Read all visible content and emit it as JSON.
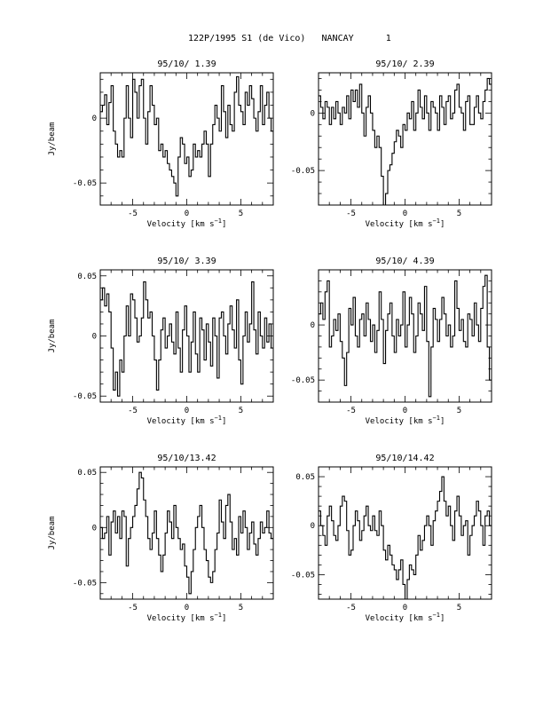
{
  "page_title": "122P/1995 S1 (de Vico)   NANCAY      1",
  "chart_data": [
    {
      "type": "line",
      "title": "95/10/ 1.39",
      "xlabel": "Velocity [km s⁻¹]",
      "ylabel": "Jy/beam",
      "xlim": [
        -8,
        8
      ],
      "ylim": [
        -0.067,
        0.035
      ],
      "xticks": [
        -5,
        0,
        5
      ],
      "yticks": [
        -0.05,
        0
      ],
      "x_start": -7.9,
      "x_step": 0.2,
      "values": [
        0.005,
        0.01,
        0.018,
        -0.005,
        0.012,
        0.025,
        -0.01,
        -0.02,
        -0.03,
        -0.025,
        -0.03,
        0.0,
        0.025,
        0.0,
        -0.015,
        0.03,
        0.02,
        0.0,
        0.025,
        0.03,
        0.0,
        -0.02,
        0.005,
        0.025,
        0.01,
        -0.005,
        0.0,
        -0.025,
        -0.02,
        -0.03,
        -0.025,
        -0.035,
        -0.04,
        -0.045,
        -0.05,
        -0.06,
        -0.03,
        -0.015,
        -0.02,
        -0.035,
        -0.03,
        -0.045,
        -0.04,
        -0.02,
        -0.03,
        -0.025,
        -0.03,
        -0.02,
        -0.01,
        -0.02,
        -0.045,
        -0.02,
        -0.005,
        0.01,
        0.0,
        -0.01,
        0.025,
        0.005,
        -0.015,
        0.01,
        -0.005,
        -0.01,
        0.02,
        0.032,
        0.01,
        0.005,
        -0.005,
        0.02,
        0.01,
        0.025,
        0.015,
        0.0,
        -0.01,
        0.005,
        0.025,
        -0.005,
        0.01,
        0.02,
        0.0,
        -0.01
      ]
    },
    {
      "type": "line",
      "title": "95/10/ 2.39",
      "xlabel": "Velocity [km s⁻¹]",
      "ylabel": "",
      "xlim": [
        -8,
        8
      ],
      "ylim": [
        -0.08,
        0.035
      ],
      "xticks": [
        -5,
        0,
        5
      ],
      "yticks": [
        -0.05,
        0
      ],
      "x_start": -7.9,
      "x_step": 0.2,
      "values": [
        0.015,
        0.005,
        -0.005,
        0.01,
        0.005,
        -0.01,
        0.005,
        -0.005,
        0.01,
        0.0,
        -0.01,
        0.005,
        0.0,
        0.015,
        -0.005,
        0.02,
        0.01,
        0.02,
        0.005,
        0.025,
        0.0,
        -0.02,
        0.005,
        0.015,
        0.0,
        -0.015,
        -0.03,
        -0.02,
        -0.03,
        -0.055,
        -0.08,
        -0.07,
        -0.05,
        -0.045,
        -0.035,
        -0.025,
        -0.015,
        -0.02,
        -0.03,
        -0.01,
        -0.015,
        0.0,
        -0.005,
        0.01,
        -0.015,
        0.0,
        0.02,
        0.005,
        -0.005,
        0.015,
        0.0,
        -0.015,
        0.01,
        0.005,
        0.0,
        -0.015,
        0.015,
        0.005,
        -0.01,
        0.01,
        0.015,
        -0.005,
        0.0,
        0.02,
        0.025,
        0.005,
        0.0,
        -0.015,
        0.01,
        0.015,
        -0.01,
        -0.01,
        0.005,
        0.015,
        0.0,
        -0.005,
        0.01,
        0.02,
        0.03,
        0.025
      ]
    },
    {
      "type": "line",
      "title": "95/10/ 3.39",
      "xlabel": "Velocity [km s⁻¹]",
      "ylabel": "Jy/beam",
      "xlim": [
        -8,
        8
      ],
      "ylim": [
        -0.055,
        0.055
      ],
      "xticks": [
        -5,
        0,
        5
      ],
      "yticks": [
        -0.05,
        0,
        0.05
      ],
      "x_start": -7.9,
      "x_step": 0.2,
      "values": [
        0.03,
        0.04,
        0.025,
        0.035,
        0.02,
        -0.01,
        -0.045,
        -0.03,
        -0.05,
        -0.02,
        -0.03,
        0.0,
        0.025,
        0.0,
        0.035,
        0.03,
        0.015,
        -0.005,
        0.0,
        0.015,
        0.045,
        0.03,
        0.015,
        0.02,
        0.0,
        -0.02,
        -0.045,
        -0.02,
        0.005,
        0.015,
        -0.01,
        0.0,
        0.01,
        -0.005,
        -0.015,
        0.02,
        -0.01,
        -0.03,
        0.005,
        0.025,
        0.0,
        -0.03,
        -0.005,
        0.02,
        -0.015,
        -0.03,
        0.015,
        0.005,
        -0.02,
        0.01,
        -0.005,
        -0.025,
        0.015,
        0.0,
        -0.035,
        0.015,
        0.02,
        0.0,
        -0.015,
        0.01,
        0.025,
        0.005,
        -0.01,
        0.03,
        -0.02,
        -0.04,
        0.0,
        0.02,
        -0.005,
        0.01,
        0.045,
        0.005,
        -0.015,
        0.02,
        0.0,
        -0.01,
        0.015,
        -0.005,
        0.01,
        -0.01
      ]
    },
    {
      "type": "line",
      "title": "95/10/ 4.39",
      "xlabel": "Velocity [km s⁻¹]",
      "ylabel": "",
      "xlim": [
        -8,
        8
      ],
      "ylim": [
        -0.07,
        0.05
      ],
      "xticks": [
        -5,
        0,
        5
      ],
      "yticks": [
        -0.05,
        0
      ],
      "x_start": -7.9,
      "x_step": 0.2,
      "values": [
        0.01,
        0.02,
        0.005,
        0.03,
        0.04,
        -0.02,
        -0.01,
        0.005,
        -0.005,
        0.01,
        -0.015,
        -0.03,
        -0.055,
        -0.025,
        0.015,
        0.0,
        0.025,
        -0.01,
        -0.02,
        0.005,
        0.01,
        -0.01,
        0.02,
        0.005,
        -0.015,
        0.0,
        -0.025,
        -0.005,
        0.03,
        0.005,
        -0.035,
        -0.005,
        0.01,
        0.02,
        -0.01,
        -0.025,
        0.005,
        -0.01,
        0.0,
        0.03,
        -0.02,
        0.0,
        0.025,
        0.01,
        -0.025,
        -0.01,
        0.02,
        0.01,
        -0.005,
        0.035,
        -0.015,
        -0.065,
        -0.02,
        0.015,
        0.005,
        -0.015,
        0.005,
        0.025,
        0.01,
        -0.01,
        0.0,
        -0.02,
        -0.01,
        0.04,
        0.015,
        -0.005,
        0.005,
        -0.015,
        -0.02,
        0.01,
        0.005,
        -0.01,
        0.02,
        0.0,
        -0.015,
        0.015,
        0.035,
        0.045,
        -0.02,
        -0.05
      ]
    },
    {
      "type": "line",
      "title": "95/10/13.42",
      "xlabel": "Velocity [km s⁻¹]",
      "ylabel": "Jy/beam",
      "xlim": [
        -8,
        8
      ],
      "ylim": [
        -0.065,
        0.055
      ],
      "xticks": [
        -5,
        0,
        5
      ],
      "yticks": [
        -0.05,
        0,
        0.05
      ],
      "x_start": -7.9,
      "x_step": 0.2,
      "values": [
        0.0,
        -0.01,
        -0.005,
        0.01,
        -0.025,
        0.005,
        0.015,
        -0.005,
        0.01,
        -0.01,
        0.015,
        0.01,
        -0.035,
        -0.01,
        0.0,
        0.01,
        0.02,
        0.035,
        0.05,
        0.045,
        0.025,
        0.01,
        -0.01,
        -0.02,
        -0.005,
        0.015,
        -0.01,
        -0.025,
        -0.04,
        -0.025,
        -0.005,
        0.015,
        0.005,
        -0.01,
        0.02,
        0.0,
        -0.01,
        -0.02,
        -0.015,
        -0.035,
        -0.045,
        -0.06,
        -0.04,
        -0.02,
        0.0,
        0.01,
        0.02,
        0.0,
        -0.02,
        -0.03,
        -0.045,
        -0.05,
        -0.04,
        -0.02,
        -0.005,
        0.025,
        0.005,
        -0.01,
        0.02,
        0.03,
        0.005,
        -0.02,
        -0.01,
        -0.025,
        0.01,
        -0.005,
        0.015,
        0.0,
        -0.02,
        -0.005,
        0.005,
        -0.015,
        -0.025,
        -0.01,
        0.005,
        -0.005,
        0.0,
        0.015,
        -0.005,
        -0.01
      ]
    },
    {
      "type": "line",
      "title": "95/10/14.42",
      "xlabel": "Velocity [km s⁻¹]",
      "ylabel": "",
      "xlim": [
        -8,
        8
      ],
      "ylim": [
        -0.075,
        0.06
      ],
      "xticks": [
        -5,
        0,
        5
      ],
      "yticks": [
        -0.05,
        0,
        0.05
      ],
      "x_start": -7.9,
      "x_step": 0.2,
      "values": [
        0.015,
        0.0,
        -0.01,
        -0.02,
        0.01,
        0.02,
        0.005,
        -0.01,
        -0.015,
        0.0,
        0.02,
        0.03,
        0.025,
        -0.005,
        -0.03,
        -0.025,
        0.0,
        0.015,
        0.005,
        -0.015,
        -0.005,
        0.01,
        0.02,
        0.0,
        -0.005,
        0.01,
        -0.005,
        -0.01,
        0.015,
        0.0,
        -0.025,
        -0.035,
        -0.02,
        -0.03,
        -0.04,
        -0.045,
        -0.055,
        -0.045,
        -0.035,
        -0.06,
        -0.075,
        -0.055,
        -0.04,
        -0.045,
        -0.05,
        -0.03,
        -0.01,
        -0.025,
        -0.015,
        0.0,
        0.01,
        0.0,
        -0.02,
        0.005,
        0.015,
        0.025,
        0.035,
        0.05,
        0.025,
        0.01,
        0.02,
        0.0,
        -0.015,
        0.015,
        0.03,
        0.01,
        -0.01,
        0.0,
        0.005,
        -0.03,
        -0.01,
        0.0,
        0.01,
        0.025,
        0.015,
        0.0,
        -0.02,
        0.01,
        0.015,
        0.0
      ]
    }
  ]
}
